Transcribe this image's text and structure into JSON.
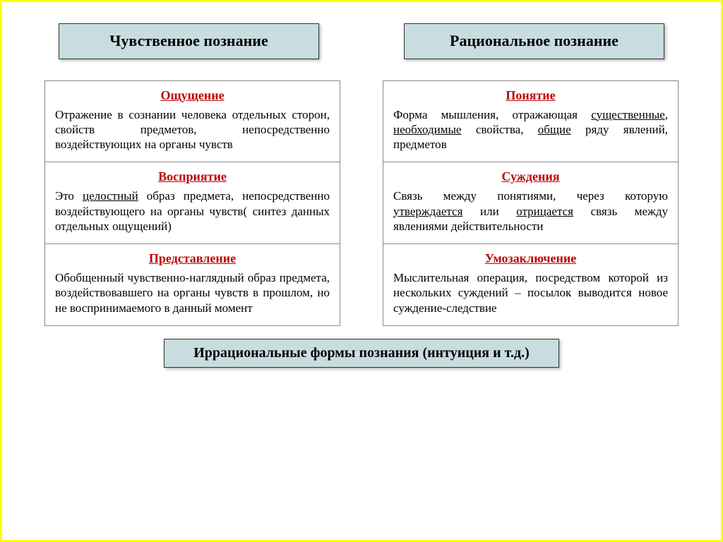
{
  "colors": {
    "page_border": "#ffff00",
    "box_bg": "#c8dde0",
    "box_border": "#333333",
    "cell_border": "#888888",
    "title_color": "#c00000",
    "text_color": "#000000",
    "background": "#ffffff"
  },
  "typography": {
    "font_family": "Times New Roman",
    "header_fontsize": 22,
    "cell_title_fontsize": 18,
    "cell_body_fontsize": 17,
    "footer_fontsize": 20
  },
  "headers": {
    "left": "Чувственное познание",
    "right": "Рациональное познание"
  },
  "left_column": [
    {
      "title": "Ощущение",
      "body_html": "Отражение в сознании человека отдельных сторон, свойств предметов, непосредственно воздействующих на органы чувств"
    },
    {
      "title": "Восприятие",
      "body_html": "Это <span class=\"u\">целостный</span> образ предмета, непосредственно воздействующего на органы чувств( синтез данных отдельных ощущений)"
    },
    {
      "title": "Представление",
      "body_html": "Обобщенный чувственно-наглядный образ предмета, воздействовавшего на органы чувств в прошлом, но не воспринимаемого в данный момент"
    }
  ],
  "right_column": [
    {
      "title": "Понятие",
      "body_html": "Форма мышления, отражающая <span class=\"u\">существенные</span>, <span class=\"u\">необходимые</span> свойства, <span class=\"u\">общие</span> ряду явлений, предметов"
    },
    {
      "title": "Суждения",
      "body_html": "Связь между понятиями, через которую <span class=\"u\">утверждается</span> или <span class=\"u\">отрицается</span> связь между явлениями действительности"
    },
    {
      "title": "Умозаключение",
      "body_html": "Мыслительная операция, посредством которой из нескольких суждений – посылок выводится новое суждение-следствие"
    }
  ],
  "footer": "Иррациональные формы познания (интуиция и т.д.)"
}
